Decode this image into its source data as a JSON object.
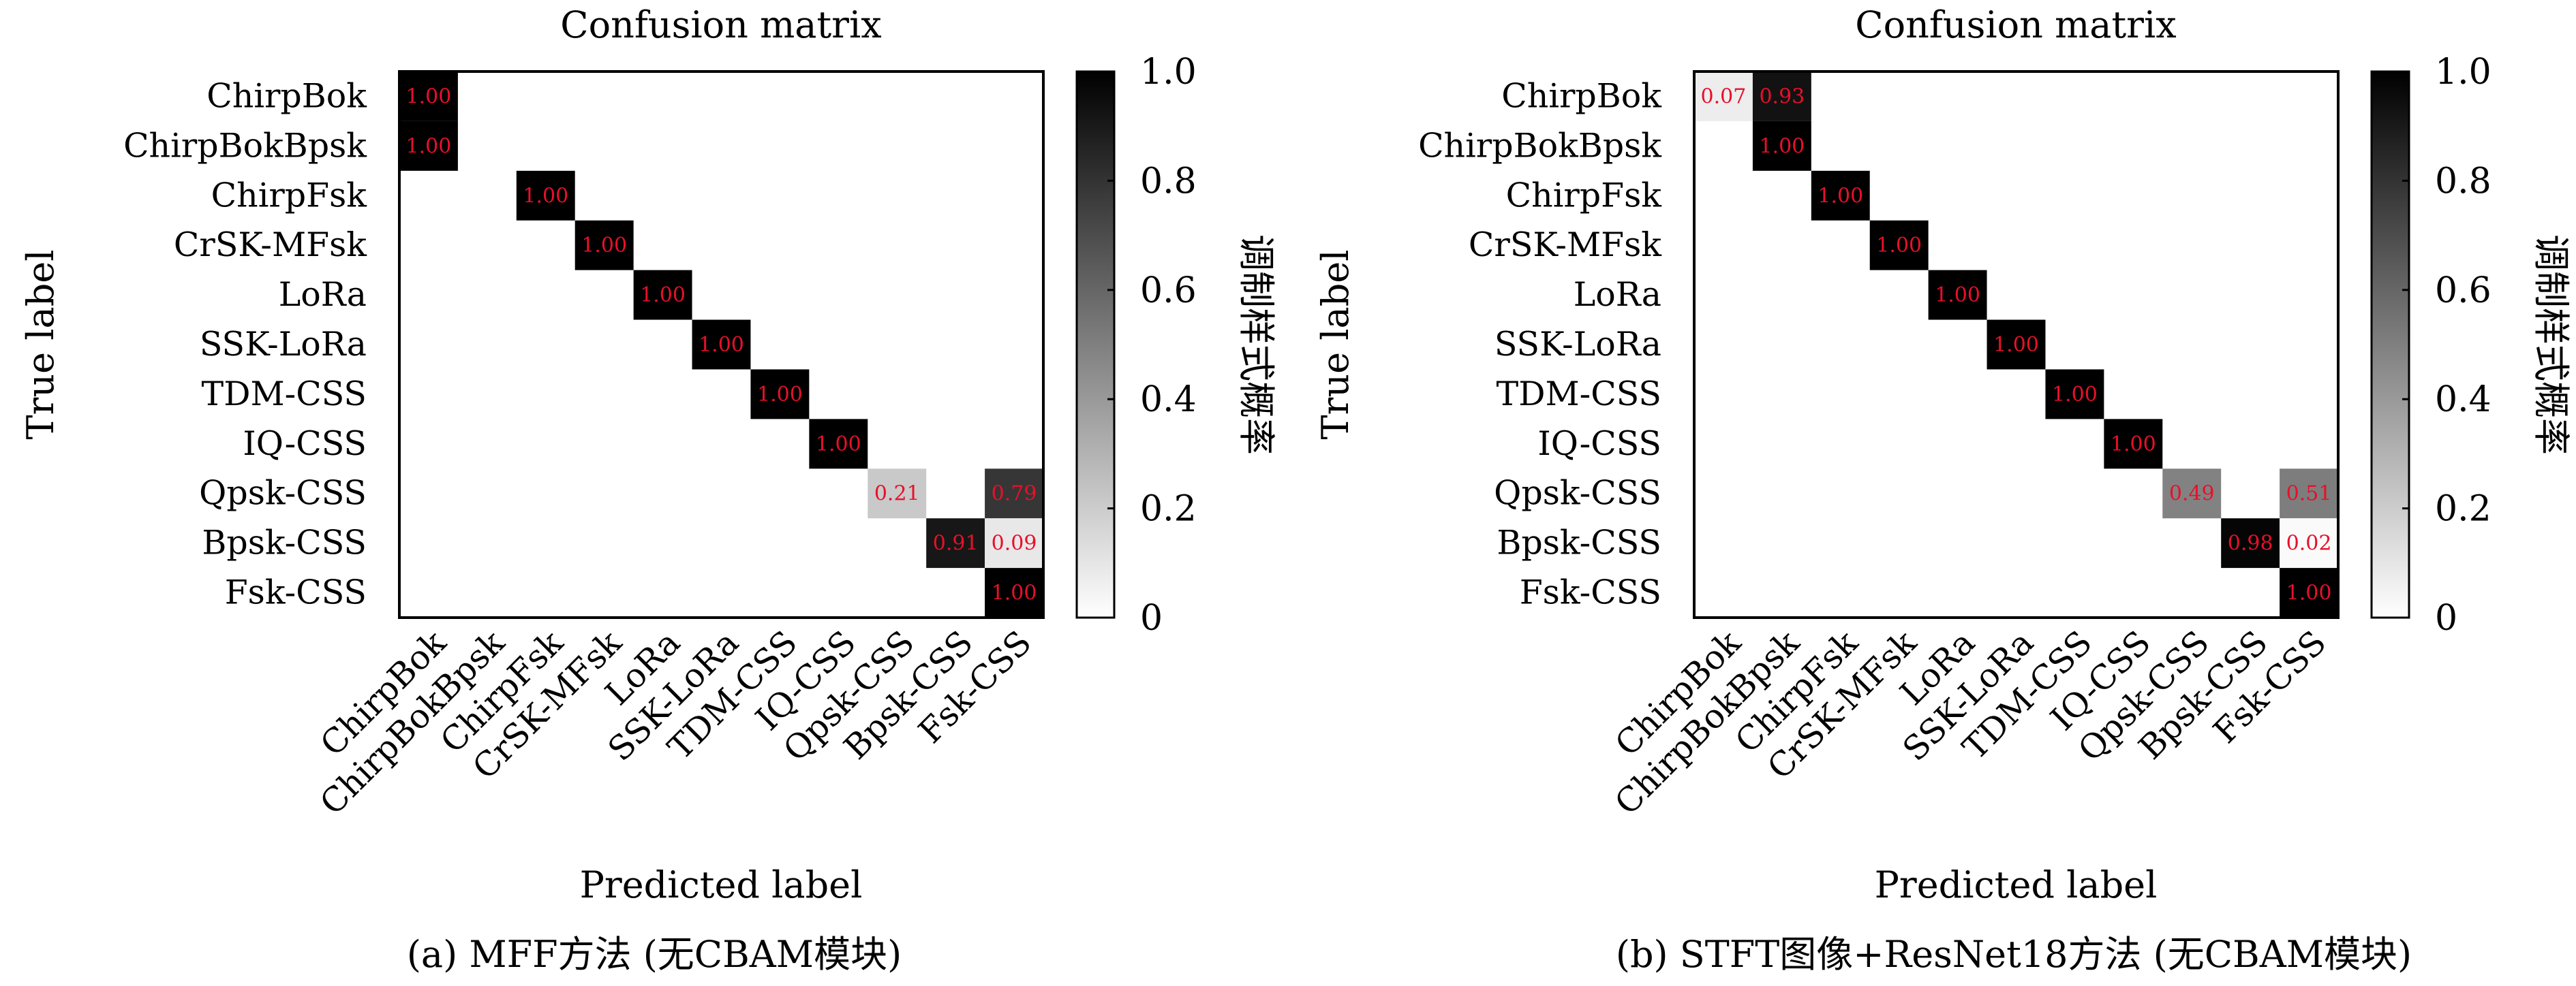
{
  "chart_data": [
    {
      "type": "heatmap",
      "title": "Confusion matrix",
      "xlabel": "Predicted label",
      "ylabel": "True label",
      "colorbar_label": "调制样式概率",
      "colorbar_ticks": [
        "0",
        "0.2",
        "0.4",
        "0.6",
        "0.8",
        "1.0"
      ],
      "colormap": [
        "#ffffff",
        "#000000"
      ],
      "caption": "(a) MFF方法 (无CBAM模块)",
      "categories": [
        "ChirpBok",
        "ChirpBokBpsk",
        "ChirpFsk",
        "CrSK-MFsk",
        "LoRa",
        "SSK-LoRa",
        "TDM-CSS",
        "IQ-CSS",
        "Qpsk-CSS",
        "Bpsk-CSS",
        "Fsk-CSS"
      ],
      "cells": [
        {
          "row": 0,
          "col": 0,
          "value": 1.0,
          "label": "1.00"
        },
        {
          "row": 1,
          "col": 0,
          "value": 1.0,
          "label": "1.00"
        },
        {
          "row": 2,
          "col": 2,
          "value": 1.0,
          "label": "1.00"
        },
        {
          "row": 3,
          "col": 3,
          "value": 1.0,
          "label": "1.00"
        },
        {
          "row": 4,
          "col": 4,
          "value": 1.0,
          "label": "1.00"
        },
        {
          "row": 5,
          "col": 5,
          "value": 1.0,
          "label": "1.00"
        },
        {
          "row": 6,
          "col": 6,
          "value": 1.0,
          "label": "1.00"
        },
        {
          "row": 7,
          "col": 7,
          "value": 1.0,
          "label": "1.00"
        },
        {
          "row": 8,
          "col": 8,
          "value": 0.21,
          "label": "0.21"
        },
        {
          "row": 8,
          "col": 10,
          "value": 0.79,
          "label": "0.79"
        },
        {
          "row": 9,
          "col": 9,
          "value": 0.91,
          "label": "0.91"
        },
        {
          "row": 9,
          "col": 10,
          "value": 0.09,
          "label": "0.09"
        },
        {
          "row": 10,
          "col": 10,
          "value": 1.0,
          "label": "1.00"
        }
      ]
    },
    {
      "type": "heatmap",
      "title": "Confusion matrix",
      "xlabel": "Predicted label",
      "ylabel": "True label",
      "colorbar_label": "调制样式概率",
      "colorbar_ticks": [
        "0",
        "0.2",
        "0.4",
        "0.6",
        "0.8",
        "1.0"
      ],
      "colormap": [
        "#ffffff",
        "#000000"
      ],
      "caption": "(b) STFT图像+ResNet18方法 (无CBAM模块)",
      "categories": [
        "ChirpBok",
        "ChirpBokBpsk",
        "ChirpFsk",
        "CrSK-MFsk",
        "LoRa",
        "SSK-LoRa",
        "TDM-CSS",
        "IQ-CSS",
        "Qpsk-CSS",
        "Bpsk-CSS",
        "Fsk-CSS"
      ],
      "cells": [
        {
          "row": 0,
          "col": 0,
          "value": 0.07,
          "label": "0.07"
        },
        {
          "row": 0,
          "col": 1,
          "value": 0.93,
          "label": "0.93"
        },
        {
          "row": 1,
          "col": 1,
          "value": 1.0,
          "label": "1.00"
        },
        {
          "row": 2,
          "col": 2,
          "value": 1.0,
          "label": "1.00"
        },
        {
          "row": 3,
          "col": 3,
          "value": 1.0,
          "label": "1.00"
        },
        {
          "row": 4,
          "col": 4,
          "value": 1.0,
          "label": "1.00"
        },
        {
          "row": 5,
          "col": 5,
          "value": 1.0,
          "label": "1.00"
        },
        {
          "row": 6,
          "col": 6,
          "value": 1.0,
          "label": "1.00"
        },
        {
          "row": 7,
          "col": 7,
          "value": 1.0,
          "label": "1.00"
        },
        {
          "row": 8,
          "col": 8,
          "value": 0.49,
          "label": "0.49"
        },
        {
          "row": 8,
          "col": 10,
          "value": 0.51,
          "label": "0.51"
        },
        {
          "row": 9,
          "col": 9,
          "value": 0.98,
          "label": "0.98"
        },
        {
          "row": 9,
          "col": 10,
          "value": 0.02,
          "label": "0.02"
        },
        {
          "row": 10,
          "col": 10,
          "value": 1.0,
          "label": "1.00"
        }
      ]
    }
  ]
}
